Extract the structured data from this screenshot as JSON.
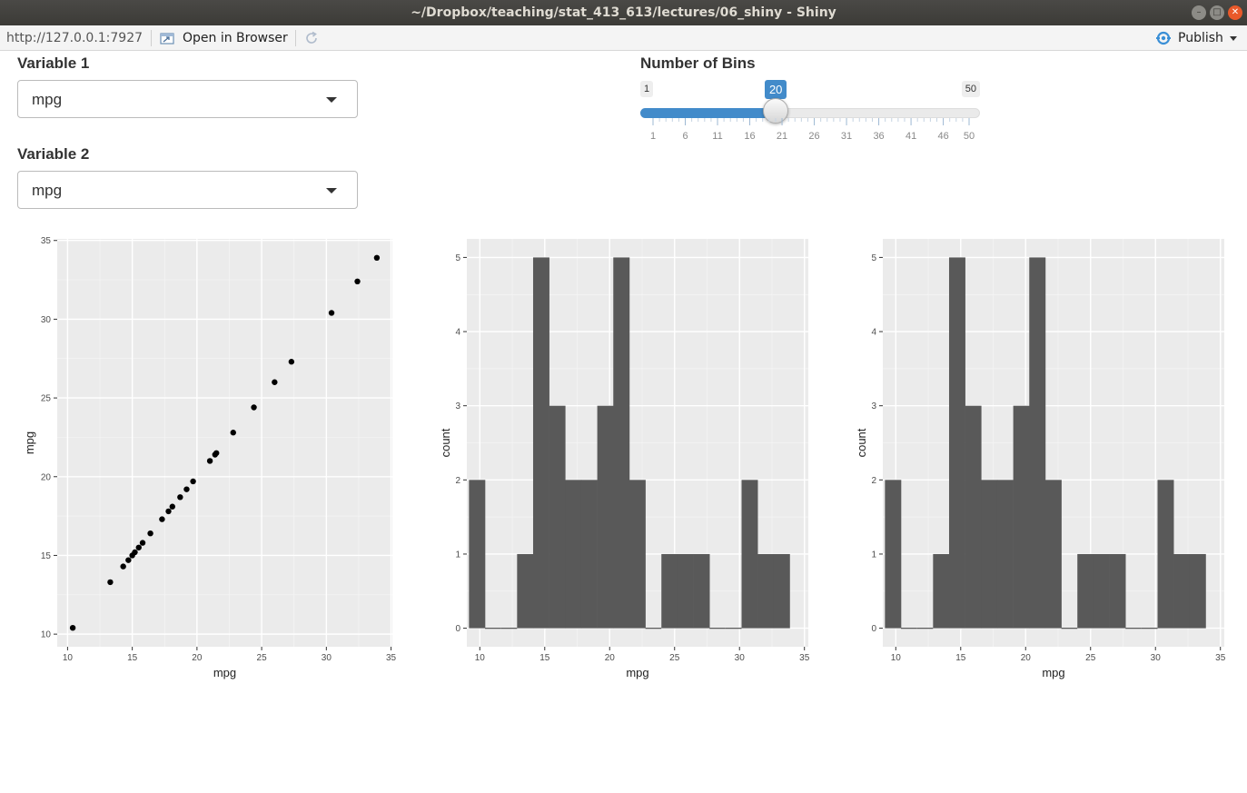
{
  "window": {
    "title": "~/Dropbox/teaching/stat_413_613/lectures/06_shiny - Shiny"
  },
  "toolbar": {
    "url": "http://127.0.0.1:7927",
    "open_in_browser": "Open in Browser",
    "publish": "Publish"
  },
  "inputs": {
    "var1": {
      "label": "Variable 1",
      "value": "mpg"
    },
    "var2": {
      "label": "Variable 2",
      "value": "mpg"
    },
    "bins": {
      "label": "Number of Bins",
      "min": 1,
      "max": 50,
      "value": 20,
      "min_label": "1",
      "max_label": "50",
      "value_label": "20",
      "ticks": [
        "1",
        "6",
        "11",
        "16",
        "21",
        "26",
        "31",
        "36",
        "41",
        "46",
        "50"
      ]
    }
  },
  "colors": {
    "accent": "#428bca",
    "panel": "#ebebeb",
    "bar": "#595959"
  },
  "chart_data": [
    {
      "type": "scatter",
      "xlabel": "mpg",
      "ylabel": "mpg",
      "xlim": [
        9.2,
        35.1
      ],
      "ylim": [
        9.2,
        35.1
      ],
      "xticks": [
        10,
        15,
        20,
        25,
        30,
        35
      ],
      "yticks": [
        10,
        15,
        20,
        25,
        30,
        35
      ],
      "grid": true,
      "points": [
        [
          10.4,
          10.4
        ],
        [
          13.3,
          13.3
        ],
        [
          14.3,
          14.3
        ],
        [
          14.7,
          14.7
        ],
        [
          15.0,
          15.0
        ],
        [
          15.2,
          15.2
        ],
        [
          15.5,
          15.5
        ],
        [
          15.8,
          15.8
        ],
        [
          16.4,
          16.4
        ],
        [
          17.3,
          17.3
        ],
        [
          17.8,
          17.8
        ],
        [
          18.1,
          18.1
        ],
        [
          18.7,
          18.7
        ],
        [
          19.2,
          19.2
        ],
        [
          19.7,
          19.7
        ],
        [
          21.0,
          21.0
        ],
        [
          21.4,
          21.4
        ],
        [
          21.5,
          21.5
        ],
        [
          22.8,
          22.8
        ],
        [
          24.4,
          24.4
        ],
        [
          26.0,
          26.0
        ],
        [
          27.3,
          27.3
        ],
        [
          30.4,
          30.4
        ],
        [
          32.4,
          32.4
        ],
        [
          33.9,
          33.9
        ]
      ]
    },
    {
      "type": "bar",
      "subtype": "histogram",
      "xlabel": "mpg",
      "ylabel": "count",
      "xlim": [
        9.0,
        35.3
      ],
      "ylim": [
        -0.25,
        5.25
      ],
      "xticks": [
        10,
        15,
        20,
        25,
        30,
        35
      ],
      "yticks": [
        0,
        1,
        2,
        3,
        4,
        5
      ],
      "bin_start": 9.165,
      "bin_width": 1.235,
      "counts": [
        2,
        0,
        0,
        1,
        5,
        3,
        2,
        2,
        3,
        5,
        2,
        0,
        1,
        1,
        1,
        0,
        0,
        2,
        1,
        1
      ]
    },
    {
      "type": "bar",
      "subtype": "histogram",
      "xlabel": "mpg",
      "ylabel": "count",
      "xlim": [
        9.0,
        35.3
      ],
      "ylim": [
        -0.25,
        5.25
      ],
      "xticks": [
        10,
        15,
        20,
        25,
        30,
        35
      ],
      "yticks": [
        0,
        1,
        2,
        3,
        4,
        5
      ],
      "bin_start": 9.165,
      "bin_width": 1.235,
      "counts": [
        2,
        0,
        0,
        1,
        5,
        3,
        2,
        2,
        3,
        5,
        2,
        0,
        1,
        1,
        1,
        0,
        0,
        2,
        1,
        1
      ]
    }
  ]
}
